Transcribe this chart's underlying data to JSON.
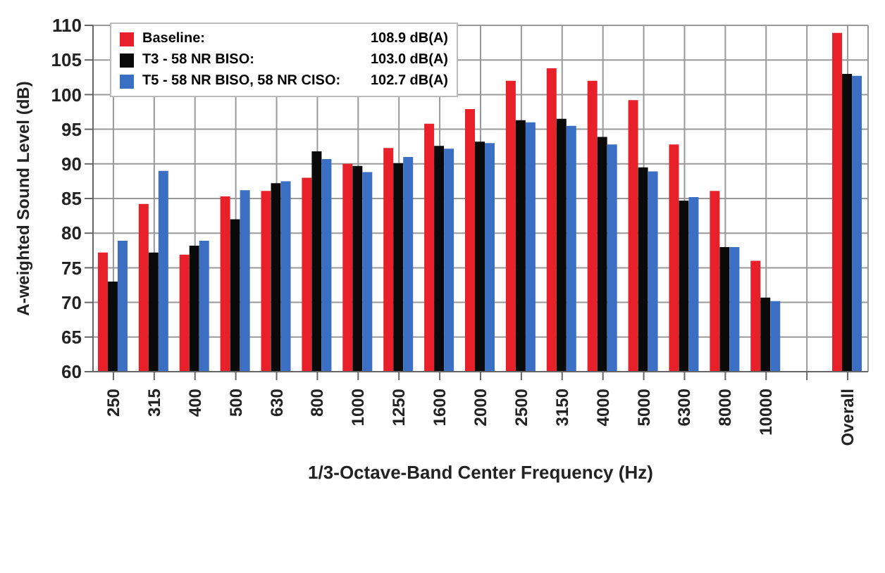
{
  "chart_data": {
    "type": "bar",
    "xlabel": "1/3-Octave-Band Center Frequency (Hz)",
    "ylabel": "A-weighted Sound Level (dB)",
    "categories": [
      "250",
      "315",
      "400",
      "500",
      "630",
      "800",
      "1000",
      "1250",
      "1600",
      "2000",
      "2500",
      "3150",
      "4000",
      "5000",
      "6300",
      "8000",
      "10000",
      null,
      "Overall"
    ],
    "series": [
      {
        "name": "Baseline:",
        "color": "#e8202a",
        "values": [
          77.2,
          84.2,
          76.9,
          85.3,
          86.1,
          88.0,
          90.0,
          92.3,
          95.8,
          97.9,
          102.0,
          103.8,
          102.0,
          99.2,
          92.8,
          86.1,
          76.0,
          null,
          108.9
        ]
      },
      {
        "name": "T3 - 58 NR BISO:",
        "color": "#0a0a0a",
        "values": [
          73.0,
          77.2,
          78.2,
          82.0,
          87.2,
          91.8,
          89.7,
          90.1,
          92.6,
          93.2,
          96.3,
          96.5,
          93.9,
          89.5,
          84.7,
          78.0,
          70.7,
          null,
          103.0
        ]
      },
      {
        "name": "T5 - 58 NR BISO, 58 NR CISO:",
        "color": "#3a6fc4",
        "values": [
          78.9,
          89.0,
          78.9,
          86.2,
          87.5,
          90.7,
          88.8,
          91.0,
          92.2,
          93.0,
          96.0,
          95.5,
          92.8,
          88.9,
          85.2,
          78.0,
          70.2,
          null,
          102.7
        ]
      }
    ],
    "annotations": [
      "108.9 dB(A)",
      "103.0 dB(A)",
      "102.7 dB(A)"
    ],
    "ylim": [
      60,
      110
    ],
    "yticks": [
      60,
      65,
      70,
      75,
      80,
      85,
      90,
      95,
      100,
      105,
      110
    ],
    "grid": true,
    "legend": "top left"
  }
}
